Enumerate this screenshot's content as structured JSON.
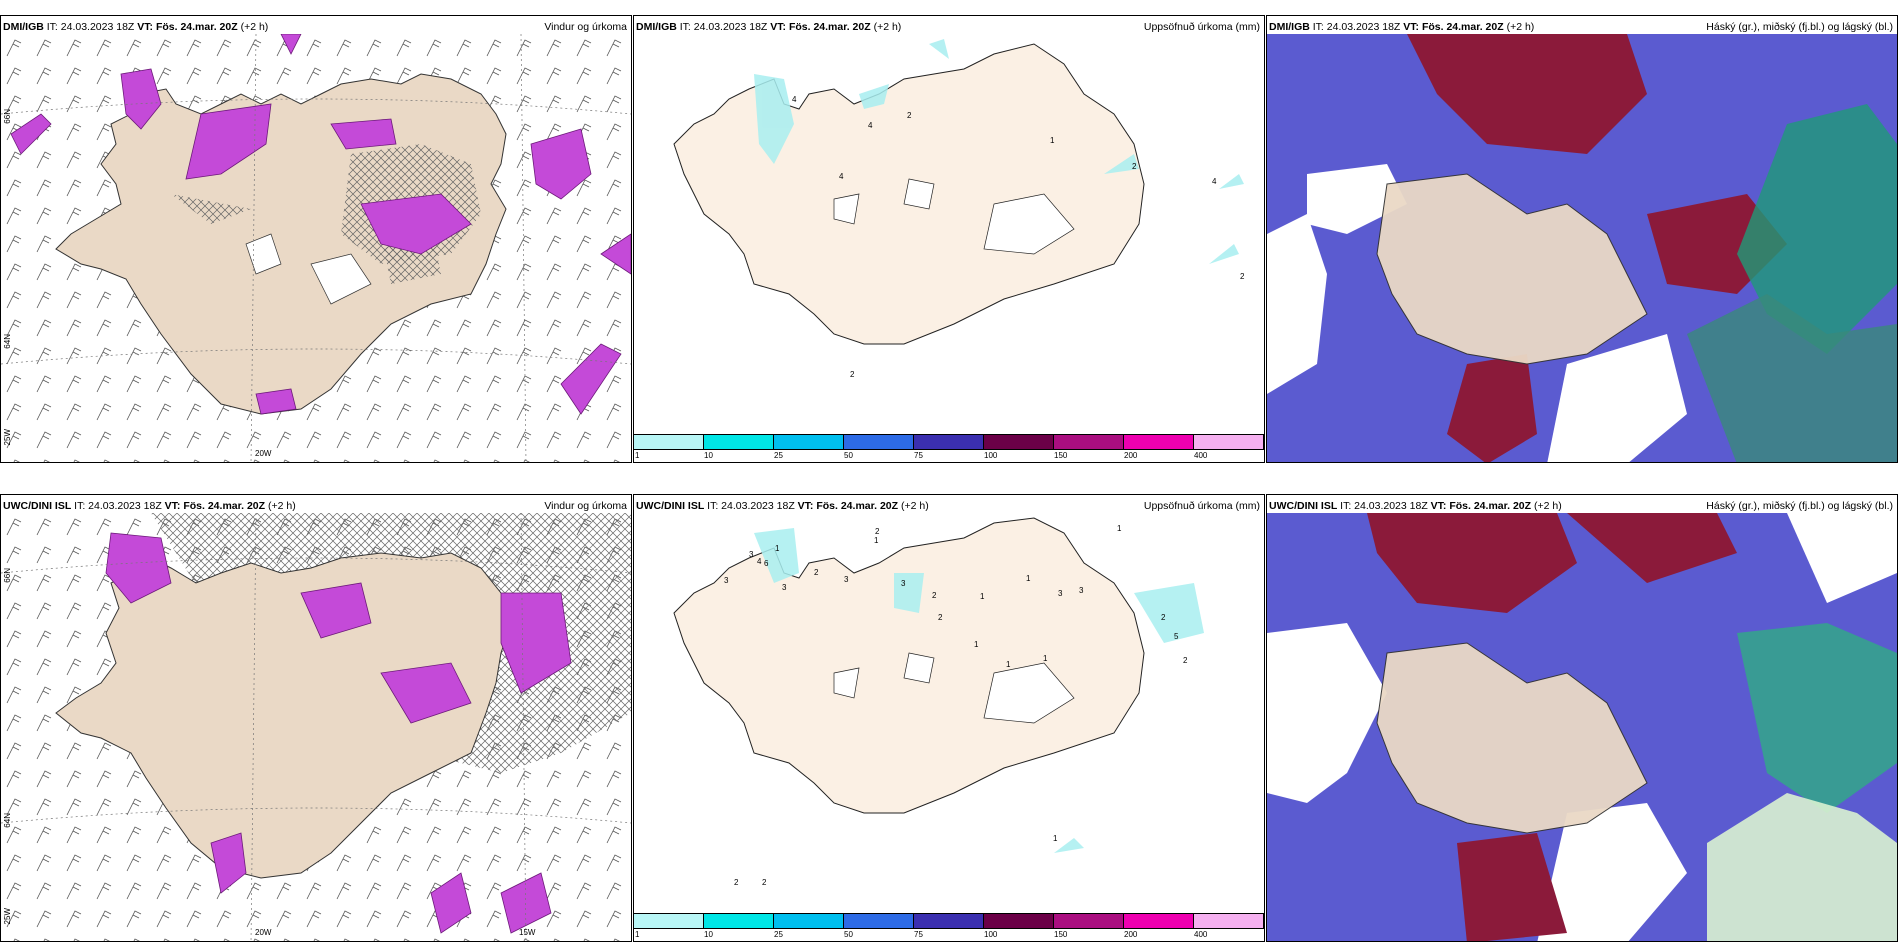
{
  "panels": [
    {
      "model": "DMI/IGB",
      "it": "IT: 24.03.2023 18Z",
      "vt_label": "VT:",
      "vt": "Fös. 24.mar. 20Z",
      "lead": "(+2 h)",
      "title": "Vindur og úrkoma"
    },
    {
      "model": "DMI/IGB",
      "it": "IT: 24.03.2023 18Z",
      "vt_label": "VT:",
      "vt": "Fös. 24.mar. 20Z",
      "lead": "(+2 h)",
      "title": "Uppsöfnuð úrkoma (mm)"
    },
    {
      "model": "DMI/IGB",
      "it": "IT: 24.03.2023 18Z",
      "vt_label": "VT:",
      "vt": "Fös. 24.mar. 20Z",
      "lead": "(+2 h)",
      "title": "Háský (gr.), miðský (fj.bl.) og lágský (bl.)"
    },
    {
      "model": "UWC/DINI ISL",
      "it": "IT: 24.03.2023 18Z",
      "vt_label": "VT:",
      "vt": "Fös. 24.mar. 20Z",
      "lead": "(+2 h)",
      "title": "Vindur og úrkoma"
    },
    {
      "model": "UWC/DINI ISL",
      "it": "IT: 24.03.2023 18Z",
      "vt_label": "VT:",
      "vt": "Fös. 24.mar. 20Z",
      "lead": "(+2 h)",
      "title": "Uppsöfnuð úrkoma (mm)"
    },
    {
      "model": "UWC/DINI ISL",
      "it": "IT: 24.03.2023 18Z",
      "vt_label": "VT:",
      "vt": "Fös. 24.mar. 20Z",
      "lead": "(+2 h)",
      "title": "Háský (gr.), miðský (fj.bl.) og lágský (bl.)"
    }
  ],
  "axis_labels": {
    "lat66": "66N",
    "lat64": "64N",
    "lon25": "25W",
    "lon20": "20W",
    "lon15": "15W"
  },
  "colorbar": {
    "ticks": [
      "1",
      "10",
      "25",
      "50",
      "75",
      "100",
      "150",
      "200",
      "400"
    ],
    "colors": [
      "#b8f6f6",
      "#00e6e6",
      "#00bfef",
      "#2d6be6",
      "#3b2fb0",
      "#6b0047",
      "#aa0e80",
      "#ee00b0",
      "#f5b0f0"
    ]
  },
  "precip_totals_top": [
    "4",
    "4",
    "2",
    "1",
    "4",
    "2",
    "4",
    "2",
    "2"
  ],
  "precip_totals_bottom": [
    "2",
    "1",
    "3",
    "4",
    "6",
    "3",
    "2",
    "3",
    "3",
    "3",
    "2",
    "1",
    "2",
    "1",
    "1",
    "3",
    "5",
    "2",
    "2",
    "1",
    "1",
    "1",
    "3",
    "2",
    "2",
    "1",
    "1"
  ],
  "colors": {
    "land": "#f1e2d3",
    "land2": "#fbf0e4",
    "precip_magenta": "#c44ad8",
    "high_cloud": "#2ba36a",
    "mid_cloud": "#8b1a3a",
    "low_cloud": "#4a49c8"
  }
}
